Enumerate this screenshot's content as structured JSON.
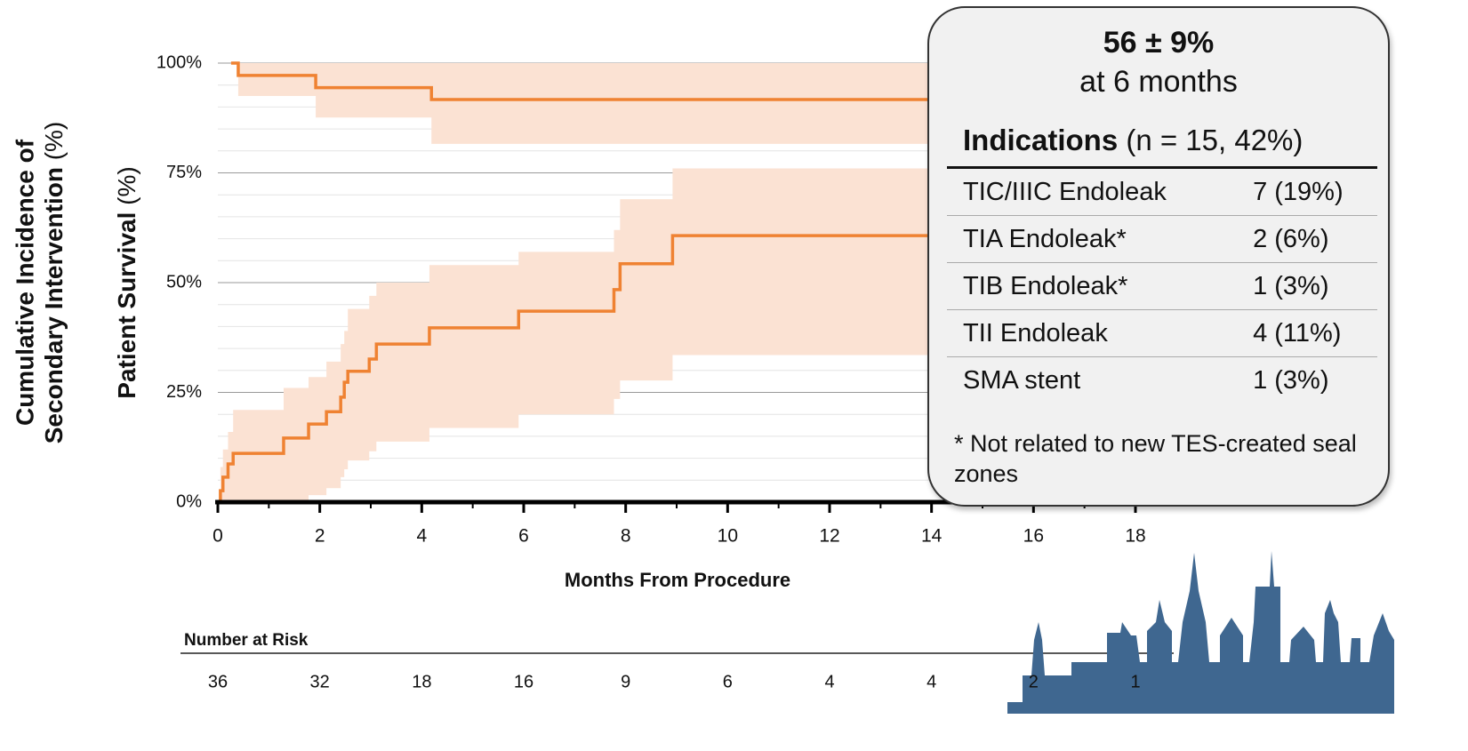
{
  "chart_data": {
    "type": "step",
    "y_label_survival": {
      "bold": "Patient Survival",
      "unit": "(%)"
    },
    "y_label_incidence": {
      "line1": "Cumulative Incidence of",
      "line2": "Secondary Intervention",
      "unit": "(%)"
    },
    "x_label": "Months From Procedure",
    "xlim": [
      0,
      18
    ],
    "xticks": [
      0,
      2,
      4,
      6,
      8,
      10,
      12,
      14,
      16,
      18
    ],
    "minor_xticks": [
      1,
      3,
      5,
      7,
      9,
      11,
      13,
      15,
      17
    ],
    "ylim": [
      0,
      100
    ],
    "yticks": [
      {
        "value": 0,
        "label": "0%"
      },
      {
        "value": 25,
        "label": "25%"
      },
      {
        "value": 50,
        "label": "50%"
      },
      {
        "value": 75,
        "label": "75%"
      },
      {
        "value": 100,
        "label": "100%"
      }
    ],
    "minor_yticks": [
      5,
      10,
      15,
      20,
      30,
      35,
      40,
      45,
      55,
      60,
      65,
      70,
      80,
      85,
      90,
      95
    ],
    "grid": true,
    "color": "#ef8232",
    "band_color": "#fbe2d3",
    "series": [
      {
        "x": [
          0.26,
          0.4,
          1.92,
          4.19,
          14
        ],
        "values": [
          100,
          97.2,
          94.4,
          91.7,
          91.7
        ],
        "lower": [
          100,
          92.5,
          87.6,
          81.6,
          81.6
        ],
        "upper": [
          100,
          100,
          100,
          100,
          100
        ]
      },
      {
        "x": [
          0,
          0.05,
          0.1,
          0.2,
          0.3,
          1.29,
          1.78,
          2.13,
          2.41,
          2.48,
          2.55,
          2.97,
          3.11,
          4.15,
          5.9,
          7.77,
          7.89,
          8.92,
          14
        ],
        "values": [
          0,
          2.6,
          5.7,
          8.7,
          11.1,
          14.6,
          17.8,
          20.6,
          23.9,
          27.3,
          29.8,
          32.6,
          36.0,
          39.7,
          43.5,
          48.4,
          54.3,
          60.7,
          60.7
        ],
        "lower": [
          0,
          0,
          0,
          0,
          0,
          0.5,
          1.6,
          3.2,
          5.7,
          7.5,
          9.5,
          11.6,
          13.8,
          16.9,
          20.0,
          23.5,
          27.7,
          33.5,
          33.5
        ],
        "upper": [
          0,
          8,
          12,
          16,
          21,
          26,
          28.5,
          32,
          36,
          39,
          44,
          47,
          50,
          54,
          57,
          62,
          69,
          76,
          76
        ]
      }
    ],
    "number_at_risk": {
      "label": "Number at Risk",
      "values": [
        36,
        32,
        18,
        16,
        9,
        6,
        4,
        4,
        2,
        1
      ]
    }
  },
  "callout": {
    "estimate": "56 ± 9%",
    "timepoint": "at 6 months",
    "heading": "Indications",
    "heading_note": "(n = 15, 42%)",
    "rows": [
      [
        "TIC/IIIC Endoleak",
        "7 (19%)"
      ],
      [
        "TIA Endoleak*",
        "2 (6%)"
      ],
      [
        "TIB Endoleak*",
        "1 (3%)"
      ],
      [
        "TII Endoleak",
        "4 (11%)"
      ],
      [
        "SMA stent",
        "1 (3%)"
      ]
    ],
    "footnote": "* Not related to new TES-created seal zones"
  }
}
